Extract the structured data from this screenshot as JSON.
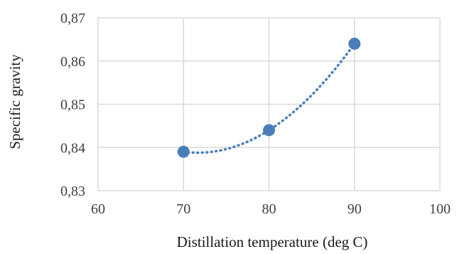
{
  "chart_data": {
    "type": "scatter",
    "title": "",
    "xlabel": "Distillation temperature (deg C)",
    "ylabel": "Specific gravity",
    "xlim": [
      60,
      100
    ],
    "ylim": [
      0.83,
      0.87
    ],
    "x_ticks": [
      60,
      70,
      80,
      90,
      100
    ],
    "y_ticks": [
      0.83,
      0.84,
      0.85,
      0.86,
      0.87
    ],
    "x_tick_labels": [
      "60",
      "70",
      "80",
      "90",
      "100"
    ],
    "y_tick_labels": [
      "0,83",
      "0,84",
      "0,85",
      "0,86",
      "0,87"
    ],
    "grid": true,
    "legend": "none",
    "series": [
      {
        "x": [
          70,
          80,
          90
        ],
        "y": [
          0.839,
          0.844,
          0.864
        ],
        "color": "#4a7ebb",
        "trendline": "polynomial-order-2"
      }
    ]
  }
}
